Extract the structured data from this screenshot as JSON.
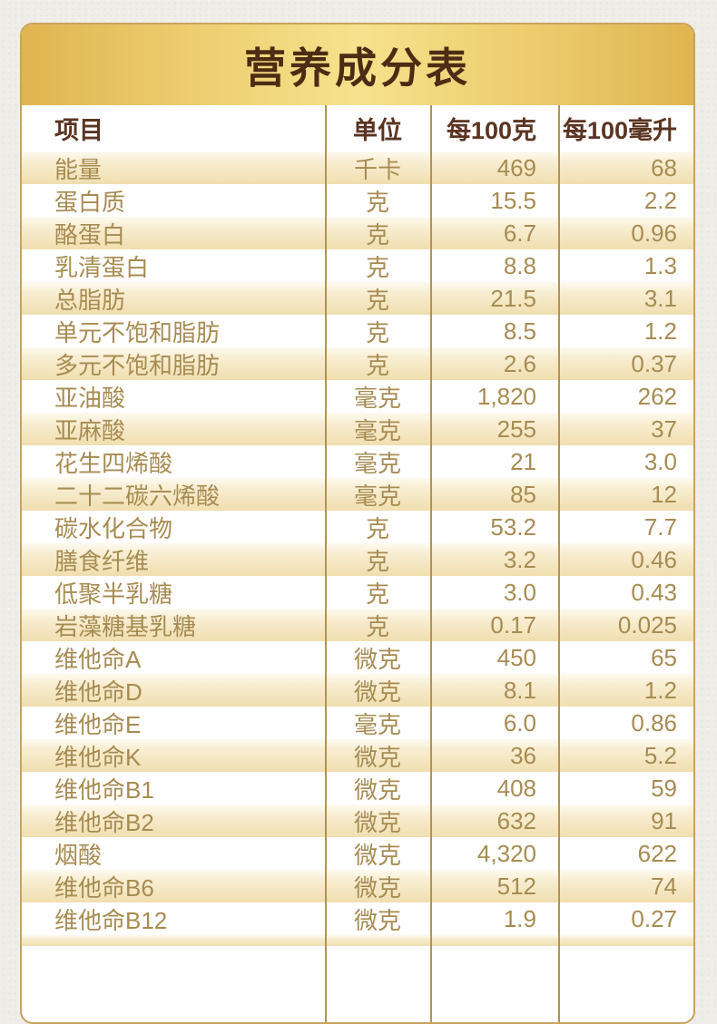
{
  "title": "营养成分表",
  "table": {
    "headers": [
      "项目",
      "单位",
      "每100克",
      "每100毫升"
    ],
    "rows": [
      {
        "item": "能量",
        "unit": "千卡",
        "per100g": "469",
        "per100ml": "68"
      },
      {
        "item": "蛋白质",
        "unit": "克",
        "per100g": "15.5",
        "per100ml": "2.2"
      },
      {
        "item": "酪蛋白",
        "unit": "克",
        "per100g": "6.7",
        "per100ml": "0.96"
      },
      {
        "item": "乳清蛋白",
        "unit": "克",
        "per100g": "8.8",
        "per100ml": "1.3"
      },
      {
        "item": "总脂肪",
        "unit": "克",
        "per100g": "21.5",
        "per100ml": "3.1"
      },
      {
        "item": "单元不饱和脂肪",
        "unit": "克",
        "per100g": "8.5",
        "per100ml": "1.2"
      },
      {
        "item": "多元不饱和脂肪",
        "unit": "克",
        "per100g": "2.6",
        "per100ml": "0.37"
      },
      {
        "item": "亚油酸",
        "unit": "毫克",
        "per100g": "1,820",
        "per100ml": "262"
      },
      {
        "item": "亚麻酸",
        "unit": "毫克",
        "per100g": "255",
        "per100ml": "37"
      },
      {
        "item": "花生四烯酸",
        "unit": "毫克",
        "per100g": "21",
        "per100ml": "3.0"
      },
      {
        "item": "二十二碳六烯酸",
        "unit": "毫克",
        "per100g": "85",
        "per100ml": "12"
      },
      {
        "item": "碳水化合物",
        "unit": "克",
        "per100g": "53.2",
        "per100ml": "7.7"
      },
      {
        "item": "膳食纤维",
        "unit": "克",
        "per100g": "3.2",
        "per100ml": "0.46"
      },
      {
        "item": "低聚半乳糖",
        "unit": "克",
        "per100g": "3.0",
        "per100ml": "0.43"
      },
      {
        "item": "岩藻糖基乳糖",
        "unit": "克",
        "per100g": "0.17",
        "per100ml": "0.025"
      },
      {
        "item": "维他命A",
        "unit": "微克",
        "per100g": "450",
        "per100ml": "65"
      },
      {
        "item": "维他命D",
        "unit": "微克",
        "per100g": "8.1",
        "per100ml": "1.2"
      },
      {
        "item": "维他命E",
        "unit": "毫克",
        "per100g": "6.0",
        "per100ml": "0.86"
      },
      {
        "item": "维他命K",
        "unit": "微克",
        "per100g": "36",
        "per100ml": "5.2"
      },
      {
        "item": "维他命B1",
        "unit": "微克",
        "per100g": "408",
        "per100ml": "59"
      },
      {
        "item": "维他命B2",
        "unit": "微克",
        "per100g": "632",
        "per100ml": "91"
      },
      {
        "item": "烟酸",
        "unit": "微克",
        "per100g": "4,320",
        "per100ml": "622"
      },
      {
        "item": "维他命B6",
        "unit": "微克",
        "per100g": "512",
        "per100ml": "74"
      },
      {
        "item": "维他命B12",
        "unit": "微克",
        "per100g": "1.9",
        "per100ml": "0.27"
      }
    ]
  },
  "colors": {
    "panel_border": "#c8a45c",
    "band_edge": "#e0b551",
    "band_mid": "#f6e28d",
    "title_text": "#4c2c14",
    "header_text": "#5a3421",
    "row_text": "#a78c52",
    "divider": "#b29254"
  }
}
